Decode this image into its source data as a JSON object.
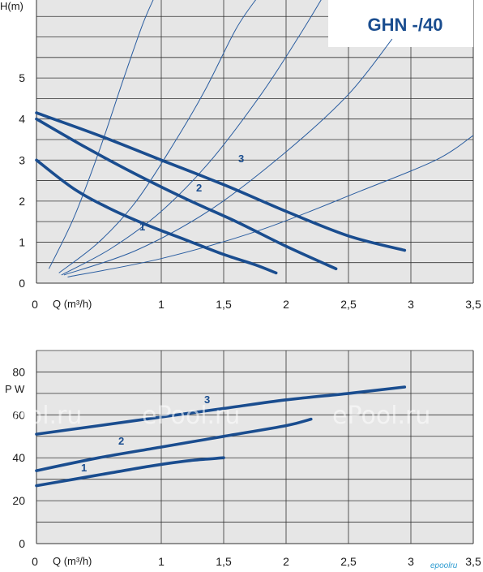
{
  "chart_data": [
    {
      "type": "line",
      "title": "GHN -/40",
      "xlabel": "Q (m³/h)",
      "ylabel": "H(m)",
      "xlim": [
        0,
        3.5
      ],
      "ylim": [
        0,
        6.9
      ],
      "grid": true,
      "x_ticks": [
        "0",
        "1",
        "1,5",
        "2",
        "2,5",
        "3",
        "3,5"
      ],
      "y_ticks": [
        "0",
        "1",
        "2",
        "3",
        "4",
        "5"
      ],
      "series": [
        {
          "name": "1",
          "x": [
            0,
            0.3,
            0.6,
            0.9,
            1.2,
            1.5,
            1.75,
            1.92
          ],
          "y": [
            3.0,
            2.3,
            1.8,
            1.4,
            1.05,
            0.7,
            0.45,
            0.25
          ]
        },
        {
          "name": "2",
          "x": [
            0,
            0.4,
            0.8,
            1.2,
            1.6,
            2.0,
            2.4
          ],
          "y": [
            4.0,
            3.3,
            2.65,
            2.05,
            1.5,
            0.9,
            0.35
          ]
        },
        {
          "name": "3",
          "x": [
            0,
            0.5,
            1.0,
            1.5,
            2.0,
            2.5,
            2.95
          ],
          "y": [
            4.15,
            3.6,
            3.0,
            2.4,
            1.75,
            1.15,
            0.8
          ]
        }
      ],
      "system_curves": [
        {
          "x": [
            0.1,
            0.3,
            0.5,
            0.7,
            0.85,
            0.95
          ],
          "y": [
            0.35,
            1.6,
            3.2,
            5.0,
            6.3,
            7.0
          ]
        },
        {
          "x": [
            0.18,
            0.5,
            0.8,
            1.1,
            1.35,
            1.6,
            1.78
          ],
          "y": [
            0.25,
            1.0,
            2.0,
            3.4,
            4.7,
            6.2,
            7.0
          ]
        },
        {
          "x": [
            0.2,
            0.6,
            1.0,
            1.4,
            1.8,
            2.1,
            2.3
          ],
          "y": [
            0.2,
            0.85,
            1.75,
            3.0,
            4.6,
            6.0,
            7.0
          ]
        },
        {
          "x": [
            0.22,
            0.8,
            1.4,
            2.0,
            2.5,
            2.85
          ],
          "y": [
            0.2,
            0.8,
            1.8,
            3.2,
            4.6,
            5.95
          ]
        },
        {
          "x": [
            0.25,
            1.0,
            1.8,
            2.6,
            3.2,
            3.5
          ],
          "y": [
            0.15,
            0.6,
            1.3,
            2.25,
            3.0,
            3.6
          ]
        }
      ]
    },
    {
      "type": "line",
      "xlabel": "Q (m³/h)",
      "ylabel": "P W",
      "xlim": [
        0,
        3.5
      ],
      "ylim": [
        0,
        90
      ],
      "grid": true,
      "x_ticks": [
        "0",
        "1",
        "1,5",
        "2",
        "2,5",
        "3",
        "3,5"
      ],
      "y_ticks": [
        "0",
        "20",
        "40",
        "60",
        "80"
      ],
      "series": [
        {
          "name": "1",
          "x": [
            0,
            0.3,
            0.6,
            0.9,
            1.2,
            1.5
          ],
          "y": [
            27,
            30,
            33,
            36,
            38.5,
            40
          ]
        },
        {
          "name": "2",
          "x": [
            0,
            0.5,
            1.0,
            1.5,
            2.0,
            2.2
          ],
          "y": [
            34,
            40,
            45,
            50,
            55,
            58
          ]
        },
        {
          "name": "3",
          "x": [
            0,
            0.5,
            1.0,
            1.5,
            2.0,
            2.5,
            2.95
          ],
          "y": [
            51,
            55,
            59,
            63,
            67,
            70,
            73
          ]
        }
      ]
    }
  ],
  "labels": {
    "model": "GHN -/40",
    "top_ylabel": "H(m)",
    "top_xlabel": "Q (m³/h)",
    "bottom_ylabel": "P W",
    "bottom_xlabel": "Q (m³/h)",
    "watermark": "ePool.ru",
    "brand": "epoolru"
  },
  "colors": {
    "plot_bg": "#e6e6e6",
    "grid": "#333333",
    "curve": "#1a4d8f",
    "system_curve": "#2a5da0",
    "model_box": "#ffffff",
    "model_text": "#1a4d8f"
  }
}
